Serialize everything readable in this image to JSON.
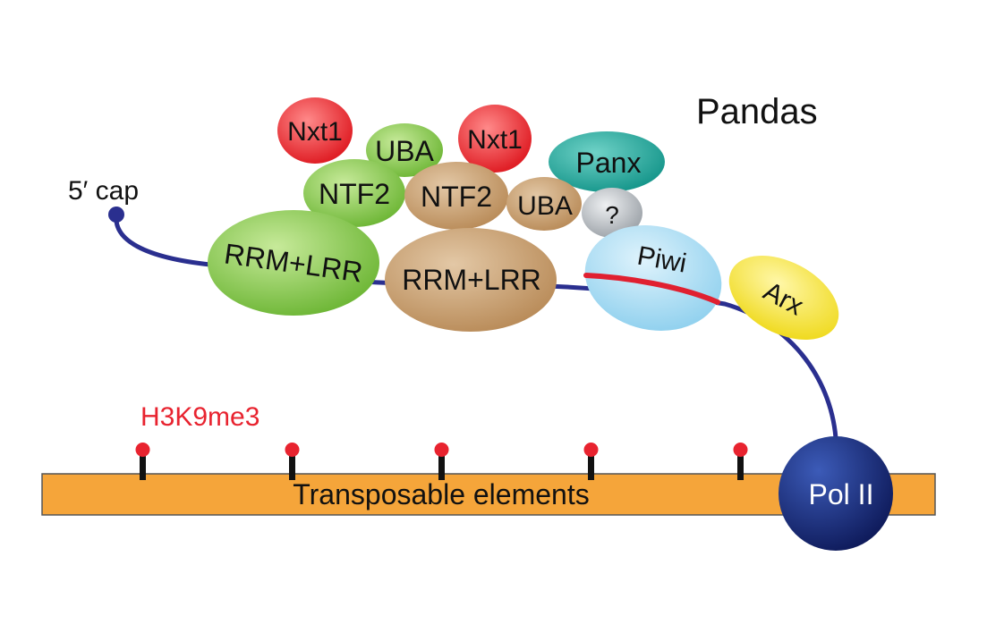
{
  "title": "Pandas",
  "cap_label": "5′ cap",
  "mark_label": "H3K9me3",
  "bar_label": "Transposable elements",
  "proteins": {
    "nxt1_left": "Nxt1",
    "uba_top": "UBA",
    "nxt1_right": "Nxt1",
    "panx": "Panx",
    "ntf2_left": "NTF2",
    "ntf2_right": "NTF2",
    "uba_small": "UBA",
    "unknown": "?",
    "rrm_lrr_left": "RRM+LRR",
    "rrm_lrr_right": "RRM+LRR",
    "piwi": "Piwi",
    "arx": "Arx",
    "pol_ii": "Pol II"
  },
  "colors": {
    "rna": "#2a2f8f",
    "pirna": "#e02030",
    "mark": "#e8232f",
    "bar": "#f5a53a",
    "nxt1": "#e01f26",
    "green": "#7cc243",
    "tan": "#c29a6b",
    "panx": "#1aa39a",
    "grey": "#bfc3c7",
    "piwi": "#a9dcf2",
    "arx": "#f4e233",
    "pol_ii": "#1a2a78"
  }
}
